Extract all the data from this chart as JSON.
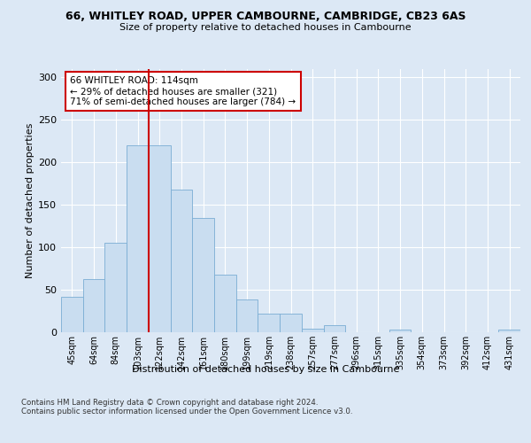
{
  "title1": "66, WHITLEY ROAD, UPPER CAMBOURNE, CAMBRIDGE, CB23 6AS",
  "title2": "Size of property relative to detached houses in Cambourne",
  "xlabel": "Distribution of detached houses by size in Cambourne",
  "ylabel": "Number of detached properties",
  "bin_labels": [
    "45sqm",
    "64sqm",
    "84sqm",
    "103sqm",
    "122sqm",
    "142sqm",
    "161sqm",
    "180sqm",
    "199sqm",
    "219sqm",
    "238sqm",
    "257sqm",
    "277sqm",
    "296sqm",
    "315sqm",
    "335sqm",
    "354sqm",
    "373sqm",
    "392sqm",
    "412sqm",
    "431sqm"
  ],
  "bar_heights": [
    42,
    63,
    105,
    220,
    220,
    168,
    134,
    68,
    39,
    22,
    22,
    4,
    8,
    0,
    0,
    3,
    0,
    0,
    0,
    0,
    3
  ],
  "bar_color": "#c9ddf0",
  "bar_edge_color": "#7aadd4",
  "vline_color": "#cc0000",
  "annotation_text": "66 WHITLEY ROAD: 114sqm\n← 29% of detached houses are smaller (321)\n71% of semi-detached houses are larger (784) →",
  "annotation_box_color": "#ffffff",
  "annotation_box_edge": "#cc0000",
  "footer": "Contains HM Land Registry data © Crown copyright and database right 2024.\nContains public sector information licensed under the Open Government Licence v3.0.",
  "ylim": [
    0,
    310
  ],
  "bg_color": "#dce8f5",
  "axes_bg_color": "#dce8f5"
}
